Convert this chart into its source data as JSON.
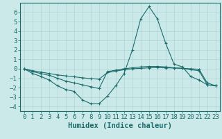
{
  "xlabel": "Humidex (Indice chaleur)",
  "ylabel": "",
  "xlim": [
    -0.5,
    23.5
  ],
  "ylim": [
    -4.5,
    7.0
  ],
  "background_color": "#cce9e9",
  "grid_color": "#afd4d4",
  "line_color": "#1a6b6b",
  "x_ticks": [
    0,
    1,
    2,
    3,
    4,
    5,
    6,
    7,
    8,
    9,
    10,
    11,
    12,
    13,
    14,
    15,
    16,
    17,
    18,
    19,
    20,
    21,
    22,
    23
  ],
  "y_ticks": [
    -4,
    -3,
    -2,
    -1,
    0,
    1,
    2,
    3,
    4,
    5,
    6
  ],
  "series": [
    {
      "x": [
        0,
        1,
        2,
        3,
        4,
        5,
        6,
        7,
        8,
        9,
        10,
        11,
        12,
        13,
        14,
        15,
        16,
        17,
        18,
        19,
        20,
        21,
        22,
        23
      ],
      "y": [
        0,
        -0.5,
        -0.8,
        -1.2,
        -1.8,
        -2.2,
        -2.4,
        -3.3,
        -3.7,
        -3.7,
        -2.9,
        -1.8,
        -0.5,
        2.0,
        5.3,
        6.6,
        5.3,
        2.7,
        0.5,
        0.2,
        -0.8,
        -1.2,
        -1.7,
        -1.8
      ]
    },
    {
      "x": [
        0,
        1,
        2,
        3,
        4,
        5,
        6,
        7,
        8,
        9,
        10,
        11,
        12,
        13,
        14,
        15,
        16,
        17,
        18,
        19,
        20,
        21,
        22,
        23
      ],
      "y": [
        0,
        -0.3,
        -0.5,
        -0.7,
        -1.0,
        -1.3,
        -1.5,
        -1.7,
        -1.9,
        -2.1,
        -0.3,
        -0.15,
        0.0,
        0.1,
        0.2,
        0.25,
        0.25,
        0.2,
        0.1,
        0.05,
        -0.1,
        -0.2,
        -1.7,
        -1.8
      ]
    },
    {
      "x": [
        0,
        1,
        2,
        3,
        4,
        5,
        6,
        7,
        8,
        9,
        10,
        11,
        12,
        13,
        14,
        15,
        16,
        17,
        18,
        19,
        20,
        21,
        22,
        23
      ],
      "y": [
        0,
        -0.2,
        -0.35,
        -0.5,
        -0.65,
        -0.75,
        -0.85,
        -0.95,
        -1.05,
        -1.1,
        -0.4,
        -0.25,
        -0.1,
        0.0,
        0.05,
        0.1,
        0.12,
        0.1,
        0.08,
        0.05,
        0.0,
        -0.05,
        -1.5,
        -1.8
      ]
    }
  ],
  "font_color": "#1a6b6b",
  "tick_fontsize": 6.5,
  "label_fontsize": 7.5
}
